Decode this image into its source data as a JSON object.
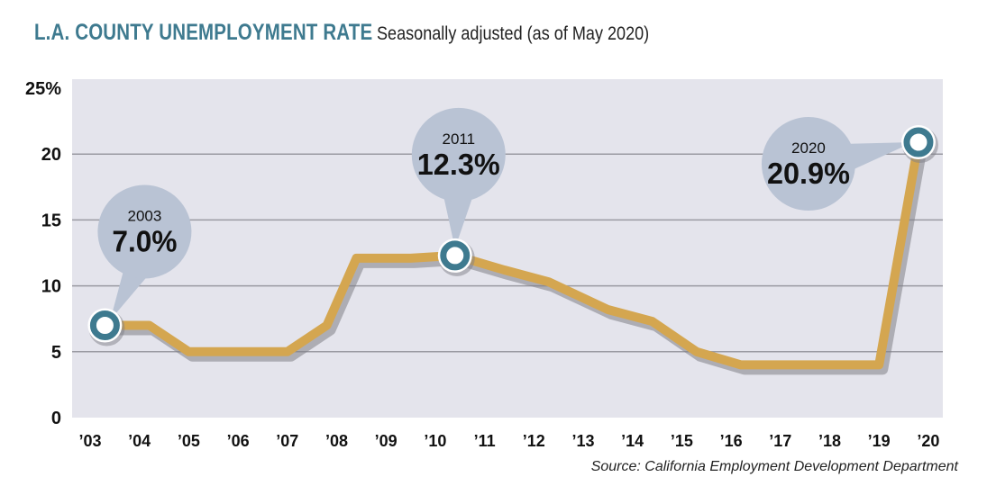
{
  "chart_data": {
    "type": "line",
    "title": "L.A. COUNTY UNEMPLOYMENT RATE",
    "subtitle": "Seasonally adjusted (as of May 2020)",
    "source": "Source: California Employment Development Department",
    "categories": [
      "’03",
      "’04",
      "’05",
      "’06",
      "’07",
      "’08",
      "’09",
      "’10",
      "’11",
      "’12",
      "’13",
      "’14",
      "’15",
      "’16",
      "’17",
      "’18",
      "’19",
      "’20"
    ],
    "x": [
      2003.3,
      2004.2,
      2005.0,
      2006.0,
      2007.0,
      2007.8,
      2008.4,
      2009.5,
      2010.4,
      2011.4,
      2012.3,
      2013.5,
      2014.4,
      2015.3,
      2016.2,
      2017.2,
      2018.2,
      2019.0,
      2019.8
    ],
    "values": [
      7.0,
      7.0,
      5.0,
      5.0,
      5.0,
      7.0,
      12.1,
      12.1,
      12.3,
      11.2,
      10.3,
      8.2,
      7.3,
      5.0,
      4.0,
      4.0,
      4.0,
      4.0,
      20.9
    ],
    "yticks": [
      {
        "value": 0,
        "label": "0"
      },
      {
        "value": 5,
        "label": "5"
      },
      {
        "value": 10,
        "label": "10"
      },
      {
        "value": 15,
        "label": "15"
      },
      {
        "value": 20,
        "label": "20"
      },
      {
        "value": 25,
        "label": "25%"
      }
    ],
    "ylim": [
      0,
      25
    ],
    "annotations": [
      {
        "year": "2003",
        "value": "7.0%",
        "x": 2003.3,
        "y": 7.0,
        "side": "up"
      },
      {
        "year": "2011",
        "value": "12.3%",
        "x": 2010.4,
        "y": 12.3,
        "side": "up"
      },
      {
        "year": "2020",
        "value": "20.9%",
        "x": 2019.8,
        "y": 20.9,
        "side": "left"
      }
    ],
    "colors": {
      "line": "#d4a650",
      "shadow": "#7f8087",
      "plot_bg": "#e4e4ec",
      "grid": "#9a9aa2",
      "bubble": "#b9c3d4",
      "marker_ring": "#3e7a8f",
      "title": "#3e7a8f"
    }
  }
}
